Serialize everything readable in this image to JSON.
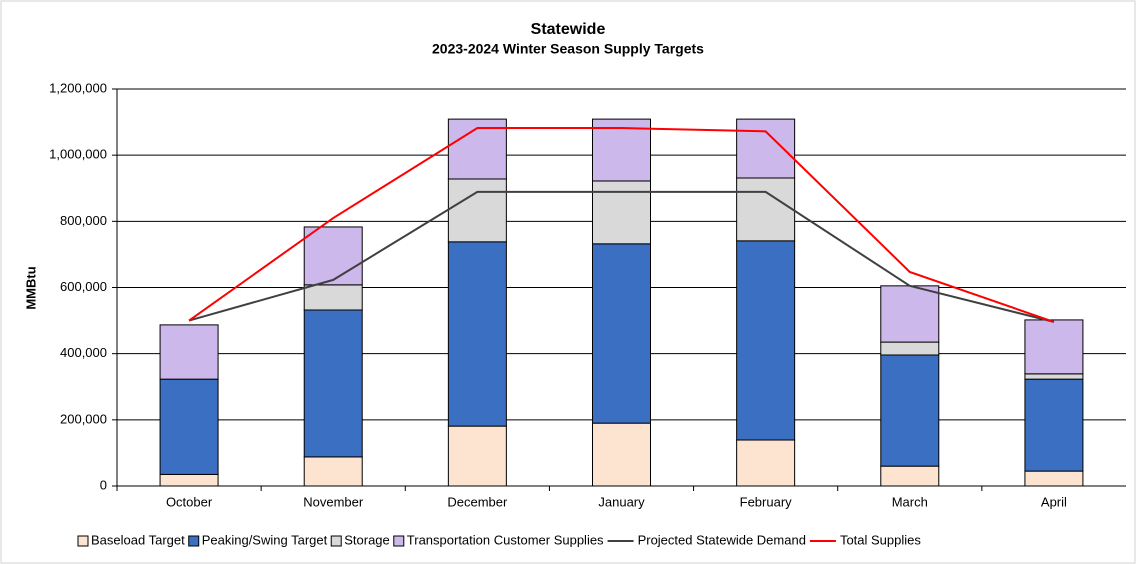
{
  "chart_data": {
    "type": "stacked_bar_line",
    "title": "Statewide",
    "subtitle": "2023-2024 Winter Season Supply Targets",
    "y_label": "MMBtu",
    "categories": [
      "October",
      "November",
      "December",
      "January",
      "February",
      "March",
      "April"
    ],
    "series": [
      {
        "name": "Baseload Target",
        "color": "#fde4d0",
        "kind": "bar",
        "values": [
          35000,
          88000,
          181000,
          190000,
          139000,
          60000,
          45000
        ]
      },
      {
        "name": "Peaking/Swing Target",
        "color": "#3a6fc2",
        "kind": "bar",
        "values": [
          288000,
          444000,
          557000,
          542000,
          602000,
          336000,
          278000
        ]
      },
      {
        "name": "Storage",
        "color": "#d9d9d9",
        "kind": "bar",
        "values": [
          0,
          76000,
          190000,
          190000,
          190000,
          39000,
          16000
        ]
      },
      {
        "name": "Transportation Customer Supplies",
        "color": "#cdb8ec",
        "kind": "bar",
        "values": [
          164000,
          175000,
          181000,
          187000,
          178000,
          170000,
          163000
        ]
      },
      {
        "name": "Projected Statewide Demand",
        "color": "#404040",
        "kind": "line",
        "values": [
          500000,
          623000,
          889000,
          889000,
          889000,
          605000,
          496000
        ]
      },
      {
        "name": "Total Supplies",
        "color": "#ff0000",
        "kind": "line",
        "values": [
          500000,
          810000,
          1082000,
          1082000,
          1072000,
          647000,
          496000
        ]
      }
    ],
    "ylim": [
      0,
      1200000
    ],
    "yticks": [
      0,
      {
        "value": 200000,
        "label": "200,000"
      },
      {
        "value": 400000,
        "label": "400,000"
      },
      {
        "value": 600000,
        "label": "600,000"
      },
      {
        "value": 800000,
        "label": "800,000"
      },
      {
        "value": 1000000,
        "label": "1,000,000"
      },
      {
        "value": 1200000,
        "label": "1,200,000"
      }
    ],
    "grid": true
  }
}
